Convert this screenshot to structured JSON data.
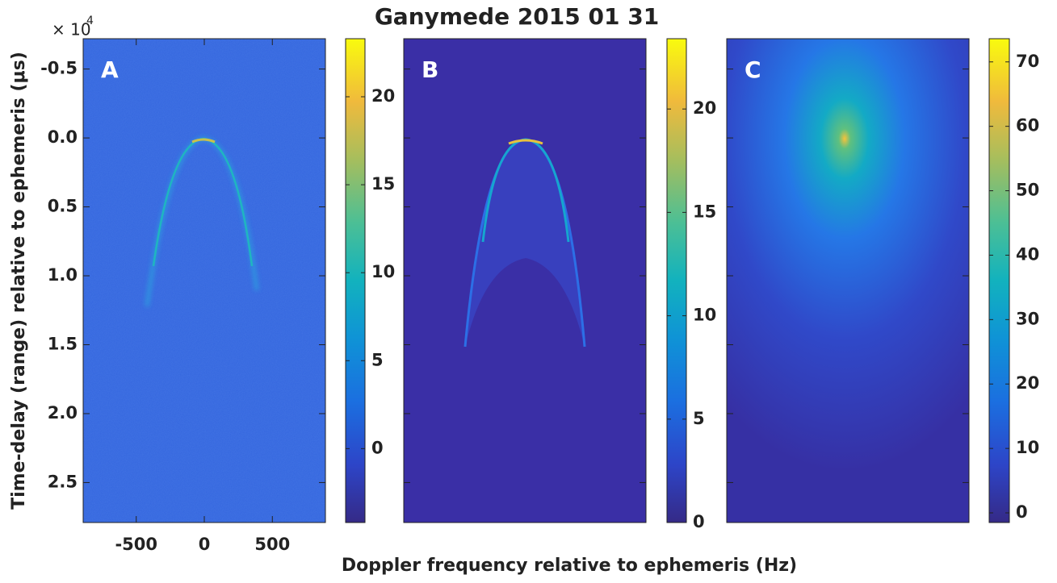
{
  "chart_data": {
    "type": "heatmap",
    "title": "Ganymede 2015 01 31",
    "xlabel": "Doppler frequency relative to ephemeris (Hz)",
    "ylabel": "Time-delay (range) relative to ephemeris (μs)",
    "y_offset_text": {
      "base": "× 10",
      "exponent": "4"
    },
    "ylim": [
      -0.72,
      2.79
    ],
    "yticks": [
      -0.5,
      {
        "value": 0,
        "label": "0.0"
      },
      0.5,
      {
        "value": 1,
        "label": "1.0"
      },
      1.5,
      {
        "value": 2,
        "label": "2.0"
      },
      2.5
    ],
    "panels": [
      {
        "label": "A",
        "xlim": [
          -890,
          890
        ],
        "xticks": [
          -500,
          0,
          500
        ],
        "colorbar": {
          "lim": [
            -4.2,
            23.3
          ],
          "ticks": [
            0,
            5,
            10,
            15,
            20
          ]
        }
      },
      {
        "label": "B",
        "colorbar": {
          "lim": [
            0,
            23.4
          ],
          "ticks": [
            0,
            5,
            10,
            15,
            20
          ]
        }
      },
      {
        "label": "C",
        "colorbar": {
          "lim": [
            -1.5,
            73.6
          ],
          "ticks": [
            0,
            10,
            20,
            30,
            40,
            50,
            60,
            70
          ]
        }
      }
    ]
  }
}
